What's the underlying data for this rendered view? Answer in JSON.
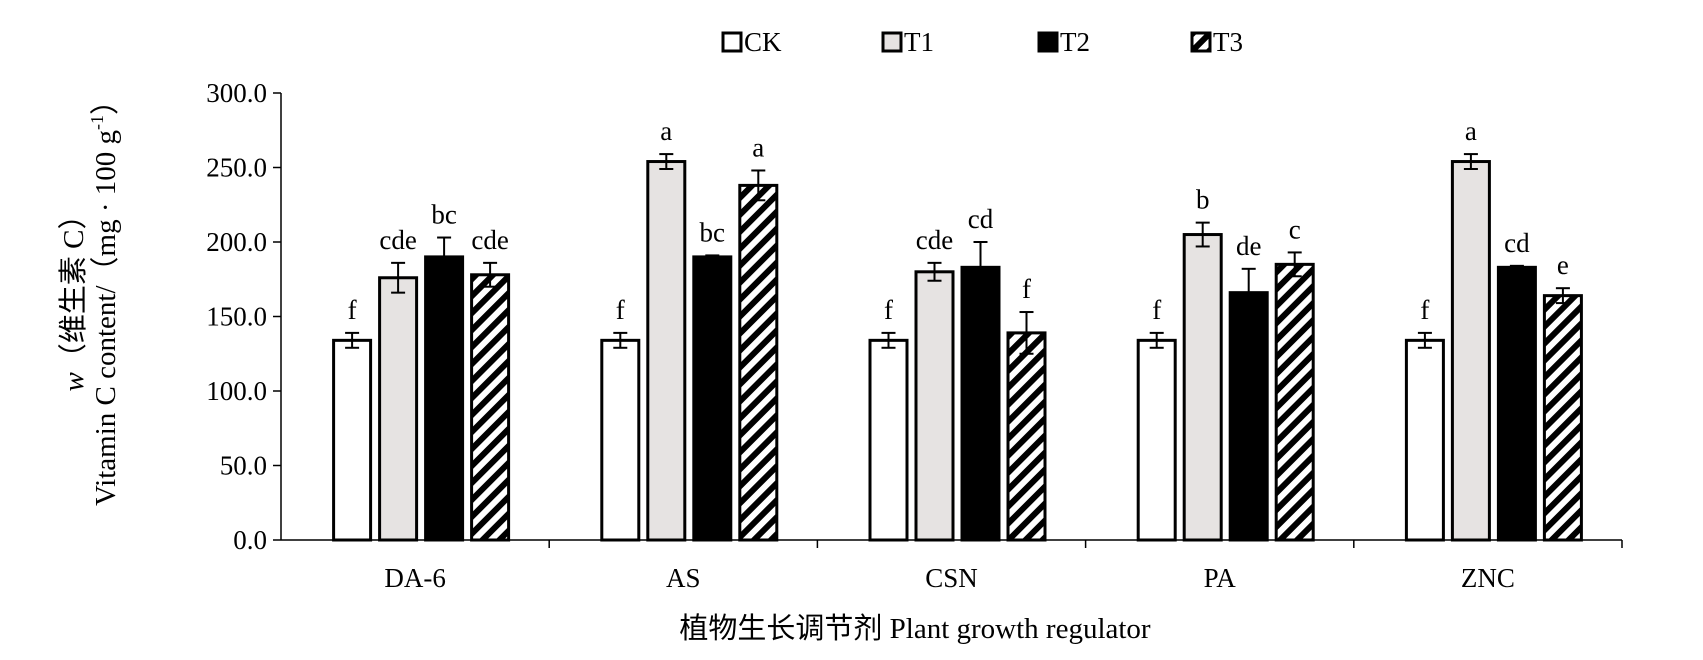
{
  "chart_data": {
    "type": "bar",
    "categories": [
      "DA-6",
      "AS",
      "CSN",
      "PA",
      "ZNC"
    ],
    "series": [
      {
        "name": "CK",
        "values": [
          134,
          134,
          134,
          134,
          134
        ],
        "errors": [
          5,
          5,
          5,
          5,
          5
        ],
        "letters": [
          "f",
          "f",
          "f",
          "f",
          "f"
        ]
      },
      {
        "name": "T1",
        "values": [
          176,
          254,
          180,
          205,
          254
        ],
        "errors": [
          10,
          5,
          6,
          8,
          5
        ],
        "letters": [
          "cde",
          "a",
          "cde",
          "b",
          "a"
        ]
      },
      {
        "name": "T2",
        "values": [
          190,
          190,
          183,
          166,
          183
        ],
        "errors": [
          13,
          1,
          17,
          16,
          1
        ],
        "letters": [
          "bc",
          "bc",
          "cd",
          "de",
          "cd"
        ]
      },
      {
        "name": "T3",
        "values": [
          178,
          238,
          139,
          185,
          164
        ],
        "errors": [
          8,
          10,
          14,
          8,
          5
        ],
        "letters": [
          "cde",
          "a",
          "f",
          "c",
          "e"
        ]
      }
    ],
    "xlabel": "植物生长调节剂 Plant growth regulator",
    "ylabel_line1_prefix": "w",
    "ylabel_line1_rest": "（维生素 C）",
    "ylabel_line2_main": "Vitamin C content/（mg · 100 g",
    "ylabel_line2_sup": "-1",
    "ylabel_line2_end": "）",
    "ylim": [
      0,
      300
    ],
    "yticks": [
      "0.0",
      "50.0",
      "100.0",
      "150.0",
      "200.0",
      "250.0",
      "300.0"
    ],
    "legend_position": "top-center",
    "grid": false
  }
}
